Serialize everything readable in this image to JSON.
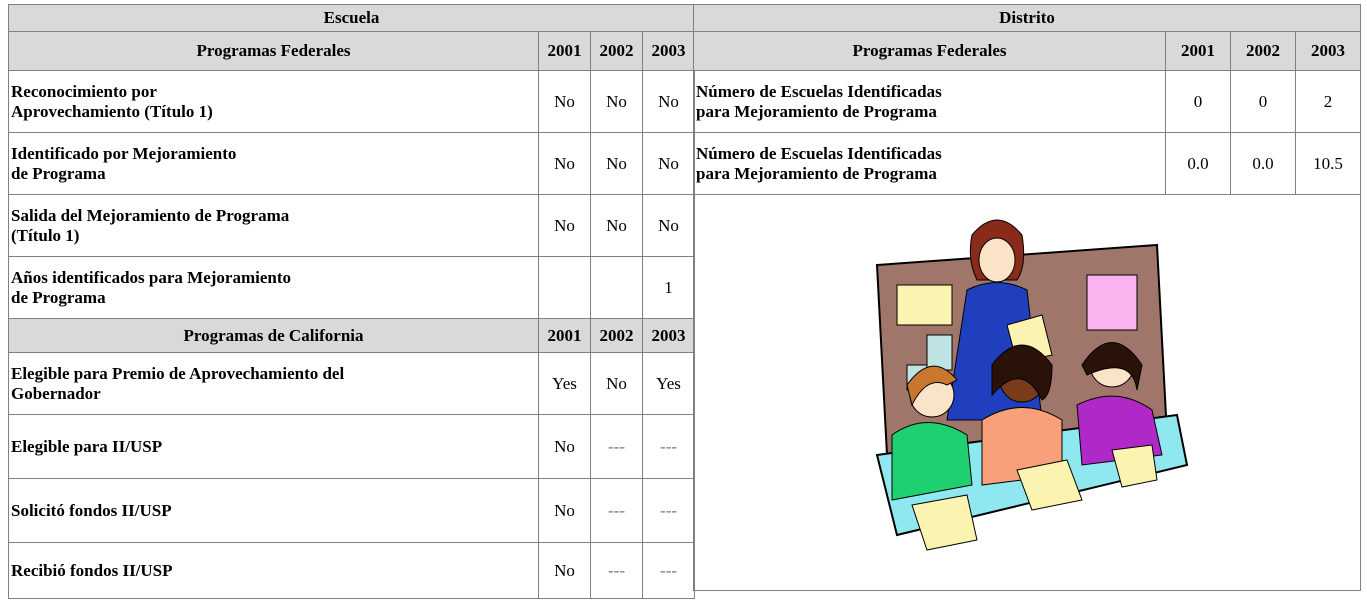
{
  "escuela": {
    "title": "Escuela",
    "federal": {
      "header": [
        "Programas Federales",
        "2001",
        "2002",
        "2003"
      ],
      "rows": [
        [
          "Reconocimiento por\nAprovechamiento (Título 1)",
          "No",
          "No",
          "No"
        ],
        [
          "Identificado por Mejoramiento\nde Programa",
          "No",
          "No",
          "No"
        ],
        [
          "Salida del Mejoramiento de Programa\n(Título 1)",
          "No",
          "No",
          "No"
        ],
        [
          "Años identificados para Mejoramiento\nde Programa",
          null,
          null,
          "1"
        ]
      ]
    },
    "california": {
      "header": [
        "Programas de California",
        "2001",
        "2002",
        "2003"
      ],
      "rows": [
        [
          "Elegible para Premio de Aprovechamiento del\nGobernador",
          "Yes",
          "No",
          "Yes"
        ],
        [
          "Elegible para II/USP",
          "No",
          "---",
          "---"
        ],
        [
          "Solicitó fondos II/USP",
          "No",
          "---",
          "---"
        ],
        [
          "Recibió fondos II/USP",
          "No",
          "---",
          "---"
        ]
      ]
    }
  },
  "distrito": {
    "title": "Distrito",
    "federal": {
      "header": [
        "Programas Federales",
        "2001",
        "2002",
        "2003"
      ],
      "rows": [
        [
          "Número de Escuelas Identificadas\npara Mejoramiento de Programa",
          "0",
          "0",
          "2"
        ],
        [
          "Número de Escuelas Identificadas\npara Mejoramiento de Programa",
          "0.0",
          "0.0",
          "10.5"
        ]
      ]
    }
  }
}
